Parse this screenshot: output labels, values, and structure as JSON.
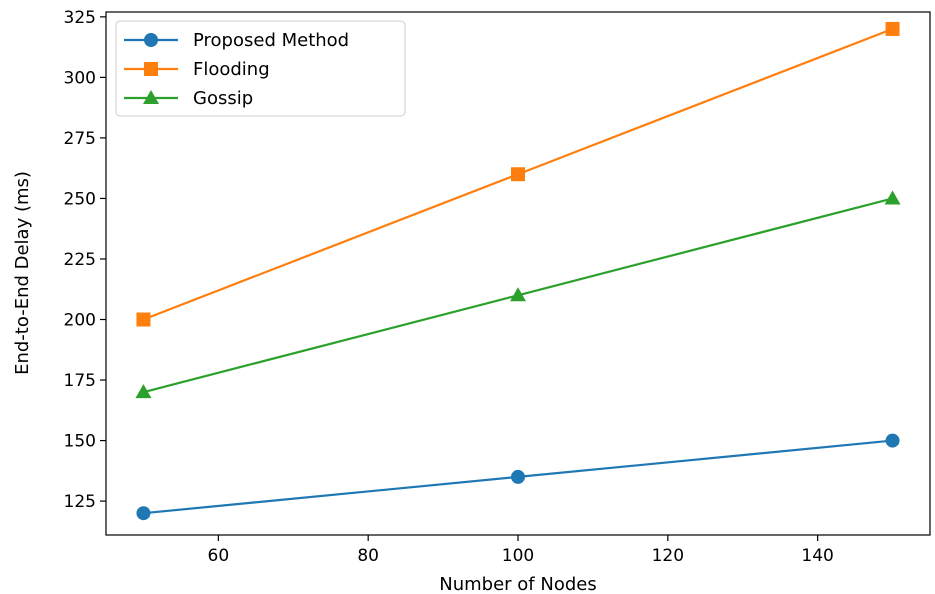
{
  "chart_data": {
    "type": "line",
    "x": [
      50,
      100,
      150
    ],
    "series": [
      {
        "name": "Proposed Method",
        "values": [
          120,
          135,
          150
        ],
        "color": "#1f77b4",
        "marker": "circle"
      },
      {
        "name": "Flooding",
        "values": [
          200,
          260,
          320
        ],
        "color": "#ff7f0e",
        "marker": "square"
      },
      {
        "name": "Gossip",
        "values": [
          170,
          210,
          250
        ],
        "color": "#2ca02c",
        "marker": "triangle"
      }
    ],
    "xlabel": "Number of Nodes",
    "ylabel": "End-to-End Delay (ms)",
    "xlim": [
      45,
      155
    ],
    "ylim": [
      111,
      327
    ],
    "xticks": [
      60,
      80,
      100,
      120,
      140
    ],
    "yticks": [
      125,
      150,
      175,
      200,
      225,
      250,
      275,
      300,
      325
    ],
    "grid": false,
    "legend_position": "top-left"
  }
}
